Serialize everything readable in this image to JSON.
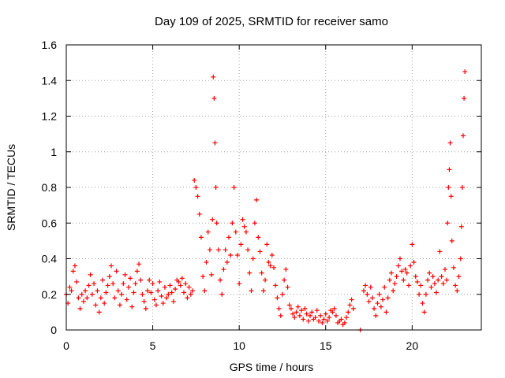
{
  "chart_data": {
    "type": "scatter",
    "title": "Day 109 of 2025, SRMTID for receiver samo",
    "xlabel": "GPS time / hours",
    "ylabel": "SRMTID / TECUs",
    "xlim": [
      0,
      24
    ],
    "ylim": [
      0,
      1.6
    ],
    "xticks": [
      0,
      5,
      10,
      15,
      20
    ],
    "xtick_labels": [
      "0",
      "5",
      "10",
      "15",
      "20"
    ],
    "yticks": [
      0,
      0.2,
      0.4,
      0.6,
      0.8,
      1.0,
      1.2,
      1.4,
      1.6
    ],
    "ytick_labels": [
      "0",
      "0.2",
      "0.4",
      "0.6",
      "0.8",
      "1",
      "1.2",
      "1.4",
      "1.6"
    ],
    "grid": true,
    "marker": "+",
    "color": "#ff0000",
    "series": [
      {
        "name": "SRMTID",
        "points": [
          [
            0.0,
            0.2
          ],
          [
            0.1,
            0.15
          ],
          [
            0.2,
            0.24
          ],
          [
            0.3,
            0.22
          ],
          [
            0.4,
            0.33
          ],
          [
            0.5,
            0.36
          ],
          [
            0.6,
            0.27
          ],
          [
            0.7,
            0.18
          ],
          [
            0.8,
            0.12
          ],
          [
            0.9,
            0.2
          ],
          [
            1.0,
            0.16
          ],
          [
            1.1,
            0.22
          ],
          [
            1.2,
            0.18
          ],
          [
            1.3,
            0.25
          ],
          [
            1.4,
            0.31
          ],
          [
            1.5,
            0.2
          ],
          [
            1.6,
            0.26
          ],
          [
            1.7,
            0.14
          ],
          [
            1.8,
            0.22
          ],
          [
            1.9,
            0.1
          ],
          [
            2.0,
            0.18
          ],
          [
            2.1,
            0.28
          ],
          [
            2.2,
            0.15
          ],
          [
            2.3,
            0.21
          ],
          [
            2.4,
            0.25
          ],
          [
            2.5,
            0.3
          ],
          [
            2.6,
            0.36
          ],
          [
            2.7,
            0.26
          ],
          [
            2.8,
            0.18
          ],
          [
            2.9,
            0.33
          ],
          [
            3.0,
            0.22
          ],
          [
            3.1,
            0.14
          ],
          [
            3.2,
            0.2
          ],
          [
            3.3,
            0.26
          ],
          [
            3.4,
            0.31
          ],
          [
            3.5,
            0.17
          ],
          [
            3.6,
            0.24
          ],
          [
            3.7,
            0.29
          ],
          [
            3.8,
            0.13
          ],
          [
            3.9,
            0.21
          ],
          [
            4.0,
            0.26
          ],
          [
            4.1,
            0.33
          ],
          [
            4.2,
            0.37
          ],
          [
            4.3,
            0.28
          ],
          [
            4.4,
            0.2
          ],
          [
            4.5,
            0.16
          ],
          [
            4.6,
            0.12
          ],
          [
            4.7,
            0.22
          ],
          [
            4.8,
            0.28
          ],
          [
            4.9,
            0.21
          ],
          [
            5.0,
            0.26
          ],
          [
            5.1,
            0.17
          ],
          [
            5.2,
            0.14
          ],
          [
            5.3,
            0.22
          ],
          [
            5.4,
            0.27
          ],
          [
            5.5,
            0.19
          ],
          [
            5.6,
            0.15
          ],
          [
            5.7,
            0.24
          ],
          [
            5.8,
            0.18
          ],
          [
            5.9,
            0.2
          ],
          [
            6.0,
            0.25
          ],
          [
            6.1,
            0.21
          ],
          [
            6.2,
            0.16
          ],
          [
            6.3,
            0.23
          ],
          [
            6.4,
            0.28
          ],
          [
            6.5,
            0.27
          ],
          [
            6.6,
            0.25
          ],
          [
            6.7,
            0.29
          ],
          [
            6.8,
            0.21
          ],
          [
            6.9,
            0.26
          ],
          [
            7.0,
            0.18
          ],
          [
            7.1,
            0.24
          ],
          [
            7.2,
            0.2
          ],
          [
            7.3,
            0.22
          ],
          [
            7.4,
            0.84
          ],
          [
            7.5,
            0.8
          ],
          [
            7.6,
            0.75
          ],
          [
            7.7,
            0.65
          ],
          [
            7.8,
            0.52
          ],
          [
            7.9,
            0.3
          ],
          [
            8.0,
            0.22
          ],
          [
            8.1,
            0.38
          ],
          [
            8.2,
            0.55
          ],
          [
            8.3,
            0.45
          ],
          [
            8.4,
            0.31
          ],
          [
            8.45,
            0.62
          ],
          [
            8.5,
            1.42
          ],
          [
            8.55,
            1.3
          ],
          [
            8.6,
            1.05
          ],
          [
            8.65,
            0.8
          ],
          [
            8.7,
            0.6
          ],
          [
            8.8,
            0.45
          ],
          [
            8.9,
            0.28
          ],
          [
            9.0,
            0.2
          ],
          [
            9.1,
            0.34
          ],
          [
            9.2,
            0.45
          ],
          [
            9.3,
            0.38
          ],
          [
            9.4,
            0.52
          ],
          [
            9.5,
            0.42
          ],
          [
            9.6,
            0.6
          ],
          [
            9.7,
            0.8
          ],
          [
            9.8,
            0.55
          ],
          [
            9.9,
            0.42
          ],
          [
            10.0,
            0.26
          ],
          [
            10.1,
            0.48
          ],
          [
            10.2,
            0.62
          ],
          [
            10.3,
            0.58
          ],
          [
            10.4,
            0.55
          ],
          [
            10.5,
            0.45
          ],
          [
            10.6,
            0.32
          ],
          [
            10.7,
            0.22
          ],
          [
            10.8,
            0.4
          ],
          [
            10.9,
            0.6
          ],
          [
            11.0,
            0.73
          ],
          [
            11.1,
            0.52
          ],
          [
            11.2,
            0.44
          ],
          [
            11.3,
            0.32
          ],
          [
            11.4,
            0.22
          ],
          [
            11.5,
            0.28
          ],
          [
            11.6,
            0.48
          ],
          [
            11.7,
            0.38
          ],
          [
            11.8,
            0.36
          ],
          [
            11.9,
            0.42
          ],
          [
            12.0,
            0.35
          ],
          [
            12.1,
            0.25
          ],
          [
            12.2,
            0.18
          ],
          [
            12.3,
            0.12
          ],
          [
            12.4,
            0.08
          ],
          [
            12.5,
            0.2
          ],
          [
            12.6,
            0.28
          ],
          [
            12.7,
            0.34
          ],
          [
            12.8,
            0.24
          ],
          [
            12.9,
            0.14
          ],
          [
            13.0,
            0.12
          ],
          [
            13.1,
            0.09
          ],
          [
            13.2,
            0.07
          ],
          [
            13.3,
            0.1
          ],
          [
            13.4,
            0.13
          ],
          [
            13.5,
            0.08
          ],
          [
            13.6,
            0.11
          ],
          [
            13.7,
            0.06
          ],
          [
            13.8,
            0.12
          ],
          [
            13.9,
            0.09
          ],
          [
            14.0,
            0.05
          ],
          [
            14.1,
            0.08
          ],
          [
            14.2,
            0.1
          ],
          [
            14.3,
            0.06
          ],
          [
            14.4,
            0.07
          ],
          [
            14.5,
            0.11
          ],
          [
            14.6,
            0.05
          ],
          [
            14.7,
            0.08
          ],
          [
            14.8,
            0.04
          ],
          [
            14.9,
            0.06
          ],
          [
            15.0,
            0.09
          ],
          [
            15.1,
            0.05
          ],
          [
            15.2,
            0.07
          ],
          [
            15.3,
            0.11
          ],
          [
            15.4,
            0.1
          ],
          [
            15.5,
            0.12
          ],
          [
            15.6,
            0.08
          ],
          [
            15.7,
            0.04
          ],
          [
            15.8,
            0.05
          ],
          [
            15.9,
            0.06
          ],
          [
            16.0,
            0.03
          ],
          [
            16.1,
            0.04
          ],
          [
            16.2,
            0.07
          ],
          [
            16.3,
            0.1
          ],
          [
            16.4,
            0.14
          ],
          [
            16.5,
            0.17
          ],
          [
            16.6,
            0.12
          ],
          [
            17.0,
            0.0
          ],
          [
            17.2,
            0.22
          ],
          [
            17.3,
            0.25
          ],
          [
            17.4,
            0.2
          ],
          [
            17.5,
            0.16
          ],
          [
            17.6,
            0.24
          ],
          [
            17.7,
            0.18
          ],
          [
            17.8,
            0.12
          ],
          [
            17.9,
            0.08
          ],
          [
            18.0,
            0.15
          ],
          [
            18.1,
            0.2
          ],
          [
            18.2,
            0.13
          ],
          [
            18.3,
            0.17
          ],
          [
            18.4,
            0.24
          ],
          [
            18.5,
            0.1
          ],
          [
            18.6,
            0.18
          ],
          [
            18.7,
            0.28
          ],
          [
            18.8,
            0.32
          ],
          [
            18.9,
            0.22
          ],
          [
            19.0,
            0.26
          ],
          [
            19.1,
            0.3
          ],
          [
            19.2,
            0.36
          ],
          [
            19.3,
            0.4
          ],
          [
            19.4,
            0.33
          ],
          [
            19.5,
            0.28
          ],
          [
            19.6,
            0.34
          ],
          [
            19.7,
            0.32
          ],
          [
            19.8,
            0.25
          ],
          [
            19.9,
            0.36
          ],
          [
            20.0,
            0.48
          ],
          [
            20.1,
            0.38
          ],
          [
            20.2,
            0.3
          ],
          [
            20.3,
            0.27
          ],
          [
            20.4,
            0.2
          ],
          [
            20.5,
            0.25
          ],
          [
            20.6,
            0.15
          ],
          [
            20.7,
            0.1
          ],
          [
            20.8,
            0.2
          ],
          [
            20.9,
            0.28
          ],
          [
            21.0,
            0.32
          ],
          [
            21.1,
            0.24
          ],
          [
            21.2,
            0.3
          ],
          [
            21.3,
            0.26
          ],
          [
            21.4,
            0.21
          ],
          [
            21.5,
            0.28
          ],
          [
            21.6,
            0.44
          ],
          [
            21.7,
            0.3
          ],
          [
            21.8,
            0.26
          ],
          [
            21.9,
            0.34
          ],
          [
            22.0,
            0.28
          ],
          [
            22.05,
            0.6
          ],
          [
            22.1,
            0.8
          ],
          [
            22.15,
            0.9
          ],
          [
            22.2,
            1.05
          ],
          [
            22.25,
            0.75
          ],
          [
            22.3,
            0.5
          ],
          [
            22.4,
            0.35
          ],
          [
            22.5,
            0.25
          ],
          [
            22.6,
            0.22
          ],
          [
            22.7,
            0.3
          ],
          [
            22.8,
            0.4
          ],
          [
            22.85,
            0.58
          ],
          [
            22.9,
            0.8
          ],
          [
            22.95,
            1.09
          ],
          [
            23.0,
            1.3
          ],
          [
            23.05,
            1.45
          ]
        ]
      }
    ]
  }
}
